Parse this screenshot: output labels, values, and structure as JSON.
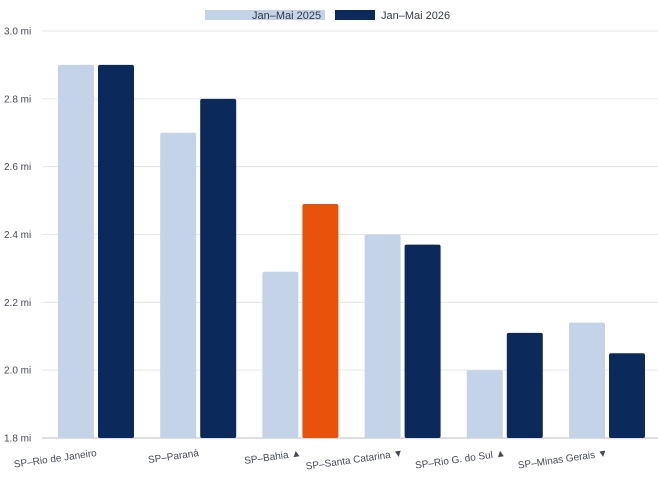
{
  "chart_data": {
    "type": "bar",
    "categories": [
      "SP–Rio de Janeiro",
      "SP–Paraná",
      "SP–Bahia ▲",
      "SP–Santa Catarina ▼",
      "SP–Rio G. do Sul ▲",
      "SP–Minas Gerais ▼"
    ],
    "series": [
      {
        "name": "Jan–Mai 2025",
        "color": "#c5d3e8",
        "values": [
          2.9,
          2.7,
          2.29,
          2.4,
          2.0,
          2.14
        ]
      },
      {
        "name": "Jan–Mai 2026",
        "color": "#0b2a5b",
        "values": [
          2.9,
          2.8,
          2.49,
          2.37,
          2.11,
          2.05
        ]
      }
    ],
    "highlight": {
      "series": 1,
      "category": 2,
      "color": "#e8520a"
    },
    "yticks": [
      "1.8 mi",
      "2.0 mi",
      "2.2 mi",
      "2.4 mi",
      "2.6 mi",
      "2.8 mi",
      "3.0 mi"
    ],
    "ylim": [
      1.8,
      3.0
    ],
    "ytick_step": 0.2,
    "grid": true,
    "legend_position": "top-center",
    "title": "",
    "xlabel": "",
    "ylabel": ""
  }
}
